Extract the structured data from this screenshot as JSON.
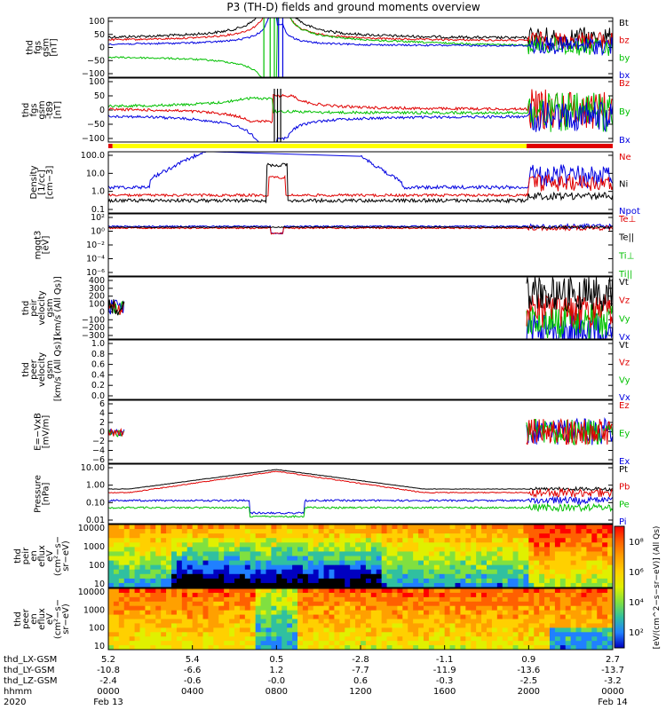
{
  "title": "P3 (TH-D) fields and ground moments overview",
  "colors": {
    "black": "#000000",
    "red": "#e00000",
    "green": "#00c000",
    "blue": "#0000e0",
    "yellow": "#ffff00"
  },
  "chart_data": {
    "type": "line",
    "x_axis": {
      "tick_rows": [
        {
          "label": "thd_LX-GSM",
          "values": [
            "5.2",
            "5.4",
            "0.5",
            "-2.8",
            "-1.1",
            "0.9",
            "2.7"
          ]
        },
        {
          "label": "thd_LY-GSM",
          "values": [
            "-10.8",
            "-6.6",
            "1.2",
            "-7.7",
            "-11.9",
            "-13.6",
            "-13.7"
          ]
        },
        {
          "label": "thd_LZ-GSM",
          "values": [
            "-2.4",
            "-0.6",
            "-0.0",
            "0.6",
            "-0.3",
            "-2.5",
            "-3.2"
          ]
        },
        {
          "label": "hhmm",
          "values": [
            "0000",
            "0400",
            "0800",
            "1200",
            "1600",
            "2000",
            "0000"
          ]
        },
        {
          "label": "2020",
          "values": [
            "Feb 13",
            "",
            "",
            "",
            "",
            "",
            "Feb 14"
          ]
        }
      ],
      "hours": [
        0,
        4,
        8,
        12,
        16,
        20,
        24
      ]
    },
    "panels": [
      {
        "id": "p1",
        "ylabel": [
          "thd",
          "fgs",
          "gsm",
          "[nT]"
        ],
        "yticks": [
          "100",
          "50",
          "0",
          "−50",
          "−100"
        ],
        "legend": [
          {
            "name": "Bt",
            "color": "black"
          },
          {
            "name": "bz",
            "color": "red"
          },
          {
            "name": "by",
            "color": "green"
          },
          {
            "name": "bx",
            "color": "blue"
          }
        ]
      },
      {
        "id": "p2",
        "ylabel": [
          "thd",
          "fgs",
          "gsm",
          "-t89",
          "[nT]"
        ],
        "yticks": [
          "100",
          "50",
          "0",
          "−50",
          "−100"
        ],
        "legend": [
          {
            "name": "Bz",
            "color": "red"
          },
          {
            "name": "By",
            "color": "green"
          },
          {
            "name": "Bx",
            "color": "blue"
          }
        ]
      },
      {
        "id": "p3",
        "ylabel": [
          "Density",
          "[1/cc]",
          "[cm−3]"
        ],
        "yticks": [
          "100.0",
          "10.0",
          "1.0",
          "0.1"
        ],
        "legend": [
          {
            "name": "Ne",
            "color": "red"
          },
          {
            "name": "Ni",
            "color": "black"
          },
          {
            "name": "Npot",
            "color": "blue"
          }
        ]
      },
      {
        "id": "p4",
        "ylabel": [
          "mgqt3",
          "[eV]"
        ],
        "yticks": [
          "10²",
          "10⁰",
          "10⁻²",
          "10⁻⁴",
          "10⁻⁶"
        ],
        "legend": [
          {
            "name": "Te⊥",
            "color": "red"
          },
          {
            "name": "Te||",
            "color": "black"
          },
          {
            "name": "Ti⊥",
            "color": "green"
          },
          {
            "name": "Ti||",
            "color": "green"
          }
        ]
      },
      {
        "id": "p5",
        "ylabel": [
          "thd",
          "peir",
          "velocity",
          "gsm",
          "[km/s (All Qs)]"
        ],
        "yticks": [
          "400",
          "300",
          "200",
          "100",
          "0",
          "−100",
          "−200",
          "−300"
        ],
        "legend": [
          {
            "name": "Vt",
            "color": "black"
          },
          {
            "name": "Vz",
            "color": "red"
          },
          {
            "name": "Vy",
            "color": "green"
          },
          {
            "name": "Vx",
            "color": "blue"
          }
        ]
      },
      {
        "id": "p6",
        "ylabel": [
          "thd",
          "peer",
          "velocity",
          "gsm",
          "[km/s (All Qs)]"
        ],
        "yticks": [
          "1.0",
          "0.8",
          "0.6",
          "0.4",
          "0.2",
          "0.0"
        ],
        "legend": [
          {
            "name": "Vt",
            "color": "black"
          },
          {
            "name": "Vz",
            "color": "red"
          },
          {
            "name": "Vy",
            "color": "green"
          },
          {
            "name": "Vx",
            "color": "blue"
          }
        ]
      },
      {
        "id": "p7",
        "ylabel": [
          "E=−VxB",
          "[mV/m]"
        ],
        "yticks": [
          "6",
          "4",
          "2",
          "0",
          "−2",
          "−4",
          "−6"
        ],
        "legend": [
          {
            "name": "Ez",
            "color": "red"
          },
          {
            "name": "Ey",
            "color": "green"
          },
          {
            "name": "Ex",
            "color": "blue"
          }
        ]
      },
      {
        "id": "p8",
        "ylabel": [
          "Pressure",
          "[nPa]"
        ],
        "yticks": [
          "10.00",
          "1.00",
          "0.10",
          "0.01"
        ],
        "legend": [
          {
            "name": "Pt",
            "color": "black"
          },
          {
            "name": "Pb",
            "color": "red"
          },
          {
            "name": "Pe",
            "color": "green"
          },
          {
            "name": "Pi",
            "color": "blue"
          }
        ]
      },
      {
        "id": "p9",
        "ylabel": [
          "thd",
          "peir",
          "en",
          "eflux",
          "eV",
          "(cm²−s−",
          "sr−eV)"
        ],
        "yticks": [
          "10000",
          "1000",
          "100",
          "10"
        ]
      },
      {
        "id": "p10",
        "ylabel": [
          "thd",
          "peer",
          "en",
          "eflux",
          "eV",
          "(cm²−s−",
          "sr−eV)"
        ],
        "yticks": [
          "10000",
          "1000",
          "100",
          "10"
        ]
      }
    ],
    "colorbar": {
      "label": "[eV/(cm^2−s−sr−eV)] (All Qs)",
      "ticks": [
        "10⁸",
        "10⁶",
        "10⁴",
        "10²"
      ]
    },
    "mode_bar": {
      "segments": [
        {
          "from_hour": 0,
          "to_hour": 0.2,
          "color": "red"
        },
        {
          "from_hour": 0.2,
          "to_hour": 19.9,
          "color": "yellow"
        },
        {
          "from_hour": 19.9,
          "to_hour": 24,
          "color": "red"
        }
      ]
    }
  }
}
